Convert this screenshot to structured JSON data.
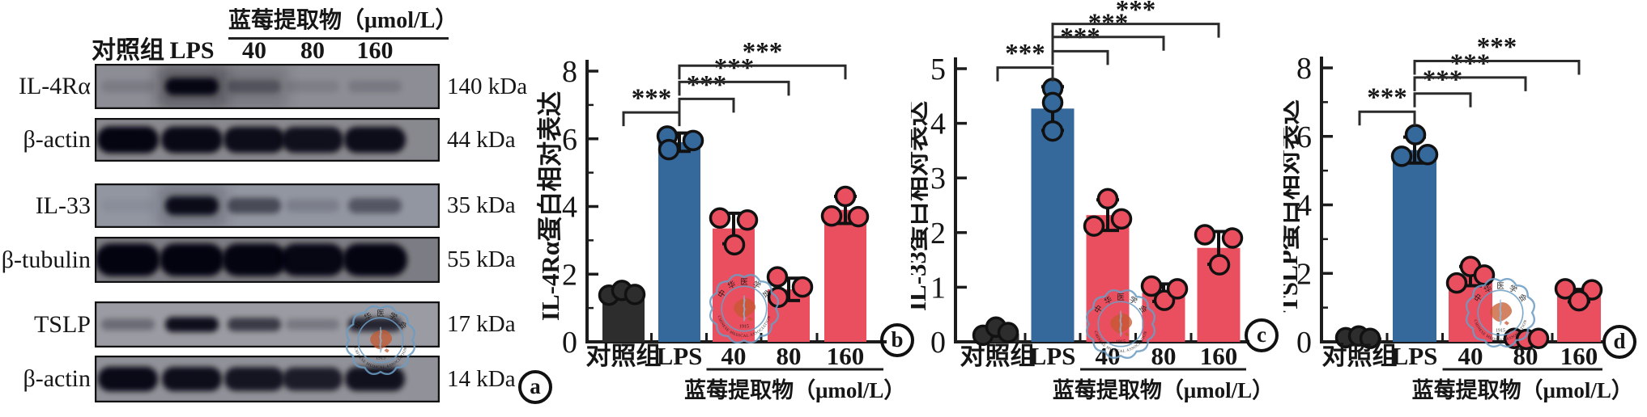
{
  "colors": {
    "control_bar": "#2d2d2e",
    "lps_bar": "#35689b",
    "treatment_bar": "#e94f5f",
    "axis": "#1c1c1c",
    "bracket": "#2b2b2b",
    "watermark_blue": "#6b9cc3",
    "watermark_orange": "#c4592f"
  },
  "watermark": {
    "top_text": "中华医学会",
    "bottom_text": "CHINESE MEDICAL ASSOCIATION",
    "year": "1915"
  },
  "blot_panel": {
    "panel_label": "a",
    "treatment_header": "蓝莓提取物（μmol/L）",
    "lane_labels": [
      "对照组",
      "LPS",
      "40",
      "80",
      "160"
    ],
    "rows": [
      {
        "protein": "IL-4Rα",
        "kda": "140 kDa",
        "bg": "#8d8d95",
        "band_height": 18,
        "band_intensities": [
          0.12,
          0.93,
          0.3,
          0.1,
          0.14
        ],
        "column_smears": [
          {
            "lane": 1,
            "opacity": 0.4
          },
          {
            "lane": 2,
            "opacity": 0.18
          }
        ]
      },
      {
        "protein": "β-actin",
        "kda": "44 kDa",
        "bg": "#88888f",
        "band_height": 28,
        "band_intensities": [
          0.96,
          0.93,
          0.9,
          0.88,
          0.9
        ],
        "column_smears": []
      },
      {
        "protein": "IL-33",
        "kda": "35 kDa",
        "bg": "#9296a1",
        "band_height": 20,
        "band_intensities": [
          0.05,
          0.9,
          0.5,
          0.15,
          0.42
        ],
        "column_smears": [
          {
            "lane": 1,
            "opacity": 0.22
          }
        ]
      },
      {
        "protein": "β-tubulin",
        "kda": "55 kDa",
        "bg": "#7c7c84",
        "band_height": 34,
        "band_intensities": [
          0.97,
          0.97,
          0.96,
          0.94,
          0.96
        ],
        "column_smears": []
      },
      {
        "protein": "TSLP",
        "kda": "17 kDa",
        "bg": "#9b9ba3",
        "band_height": 16,
        "band_intensities": [
          0.3,
          0.9,
          0.62,
          0.22,
          0.75
        ],
        "column_smears": []
      },
      {
        "protein": "β-actin",
        "kda": "14 kDa",
        "bg": "#91919a",
        "band_height": 26,
        "band_intensities": [
          0.93,
          0.9,
          0.85,
          0.8,
          0.88
        ],
        "column_smears": []
      }
    ]
  },
  "chart_data": [
    {
      "type": "bar",
      "panel_label": "b",
      "ylabel": "IL-4Rα蛋白相对表达",
      "xlabel": "蓝莓提取物（μmol/L）",
      "categories": [
        "对照组",
        "LPS",
        "40",
        "80",
        "160"
      ],
      "category_keys": [
        "control",
        "lps",
        "40",
        "80",
        "160"
      ],
      "values": [
        1.4,
        5.9,
        3.35,
        1.55,
        3.9
      ],
      "errors": [
        0,
        0.27,
        0.45,
        0.33,
        0.4
      ],
      "points": [
        [
          [
            -18,
            1.38
          ],
          [
            -2,
            1.52
          ],
          [
            14,
            1.4
          ]
        ],
        [
          [
            -15,
            6.08
          ],
          [
            -13,
            5.68
          ],
          [
            17,
            5.95
          ]
        ],
        [
          [
            -17,
            3.66
          ],
          [
            1,
            2.87
          ],
          [
            17,
            3.6
          ]
        ],
        [
          [
            -14,
            1.92
          ],
          [
            -13,
            1.32
          ],
          [
            17,
            1.62
          ]
        ],
        [
          [
            -17,
            3.72
          ],
          [
            0,
            4.3
          ],
          [
            16,
            3.7
          ]
        ]
      ],
      "ylim": [
        0,
        8
      ],
      "yticks": [
        0,
        2,
        4,
        6,
        8
      ],
      "minor_yticks": [
        1,
        3,
        5,
        7
      ],
      "grid": false,
      "legend": false,
      "bar_colors": [
        "#2d2d2e",
        "#35689b",
        "#e94f5f",
        "#e94f5f",
        "#e94f5f"
      ],
      "brackets": [
        {
          "from": 0,
          "to": 1,
          "label": "***",
          "level": 6.78
        },
        {
          "from": 1,
          "to": 2,
          "label": "***",
          "level": 7.18
        },
        {
          "from": 1,
          "to": 3,
          "label": "***",
          "level": 7.68
        },
        {
          "from": 1,
          "to": 4,
          "label": "***",
          "level": 8.16
        }
      ]
    },
    {
      "type": "bar",
      "panel_label": "c",
      "ylabel": "IL-33蛋白相对表达",
      "xlabel": "蓝莓提取物（μmol/L）",
      "categories": [
        "对照组",
        "LPS",
        "40",
        "80",
        "160"
      ],
      "category_keys": [
        "control",
        "lps",
        "40",
        "80",
        "160"
      ],
      "values": [
        0.15,
        4.27,
        2.32,
        0.9,
        1.72
      ],
      "errors": [
        0,
        0.4,
        0.28,
        0.16,
        0.3
      ],
      "points": [
        [
          [
            -18,
            0.12
          ],
          [
            -2,
            0.27
          ],
          [
            13,
            0.17
          ]
        ],
        [
          [
            0,
            4.64
          ],
          [
            0,
            4.38
          ],
          [
            0,
            3.86
          ]
        ],
        [
          [
            -17,
            2.12
          ],
          [
            0,
            2.62
          ],
          [
            17,
            2.25
          ]
        ],
        [
          [
            -15,
            1.02
          ],
          [
            1,
            0.76
          ],
          [
            17,
            0.97
          ]
        ],
        [
          [
            -17,
            1.96
          ],
          [
            17,
            1.9
          ],
          [
            1,
            1.41
          ]
        ]
      ],
      "ylim": [
        0,
        5
      ],
      "yticks": [
        0,
        1,
        2,
        3,
        4,
        5
      ],
      "minor_yticks": [],
      "grid": false,
      "legend": false,
      "bar_colors": [
        "#2d2d2e",
        "#35689b",
        "#e94f5f",
        "#e94f5f",
        "#e94f5f"
      ],
      "brackets": [
        {
          "from": 0,
          "to": 1,
          "label": "***",
          "level": 5.02
        },
        {
          "from": 1,
          "to": 2,
          "label": "***",
          "level": 5.32
        },
        {
          "from": 1,
          "to": 3,
          "label": "***",
          "level": 5.58
        },
        {
          "from": 1,
          "to": 4,
          "label": "***",
          "level": 5.82
        }
      ]
    },
    {
      "type": "bar",
      "panel_label": "d",
      "ylabel": "TSLP蛋白相对表达",
      "xlabel": "蓝莓提取物（μmol/L）",
      "categories": [
        "对照组",
        "LPS",
        "40",
        "80",
        "160"
      ],
      "category_keys": [
        "control",
        "lps",
        "40",
        "80",
        "160"
      ],
      "values": [
        0.13,
        5.6,
        1.92,
        0.1,
        1.35
      ],
      "errors": [
        0,
        0.38,
        0.28,
        0,
        0.18
      ],
      "points": [
        [
          [
            -17,
            0.12
          ],
          [
            -1,
            0.17
          ],
          [
            13,
            0.1
          ]
        ],
        [
          [
            1,
            6.05
          ],
          [
            -16,
            5.42
          ],
          [
            16,
            5.47
          ]
        ],
        [
          [
            0,
            2.2
          ],
          [
            -17,
            1.72
          ],
          [
            17,
            1.95
          ]
        ],
        [
          [
            -14,
            0.1
          ],
          [
            1,
            0.07
          ],
          [
            16,
            0.1
          ]
        ],
        [
          [
            -17,
            1.55
          ],
          [
            16,
            1.52
          ],
          [
            0,
            1.2
          ]
        ]
      ],
      "ylim": [
        0,
        8
      ],
      "yticks": [
        0,
        2,
        4,
        6,
        8
      ],
      "minor_yticks": [
        1,
        3,
        5,
        7
      ],
      "grid": false,
      "legend": false,
      "bar_colors": [
        "#2d2d2e",
        "#35689b",
        "#e94f5f",
        "#e94f5f",
        "#e94f5f"
      ],
      "brackets": [
        {
          "from": 0,
          "to": 1,
          "label": "***",
          "level": 6.72
        },
        {
          "from": 1,
          "to": 2,
          "label": "***",
          "level": 7.25
        },
        {
          "from": 1,
          "to": 3,
          "label": "***",
          "level": 7.72
        },
        {
          "from": 1,
          "to": 4,
          "label": "***",
          "level": 8.2
        }
      ]
    }
  ]
}
